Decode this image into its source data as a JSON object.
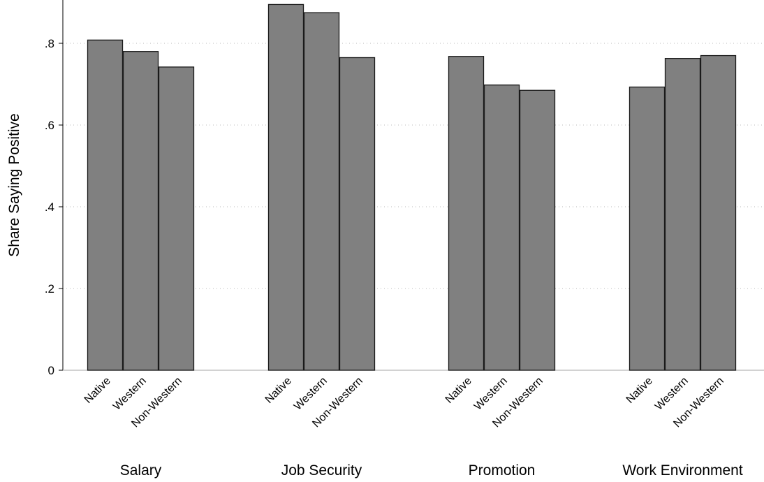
{
  "chart_data": {
    "type": "bar",
    "title": "",
    "xlabel": "",
    "ylabel": "Share Saying Positive",
    "ylim": [
      0,
      0.9
    ],
    "yticks": [
      {
        "value": 0,
        "label": "0"
      },
      {
        "value": 0.2,
        "label": ".2"
      },
      {
        "value": 0.4,
        "label": ".4"
      },
      {
        "value": 0.6,
        "label": ".6"
      },
      {
        "value": 0.8,
        "label": ".8"
      }
    ],
    "grid": "horizontal dotted",
    "legend": "none",
    "groups": [
      "Salary",
      "Job Security",
      "Promotion",
      "Work Environment"
    ],
    "categories": [
      "Native",
      "Western",
      "Non-Western"
    ],
    "values": [
      [
        0.808,
        0.78,
        0.742
      ],
      [
        0.895,
        0.875,
        0.765
      ],
      [
        0.768,
        0.698,
        0.685
      ],
      [
        0.693,
        0.763,
        0.77
      ]
    ],
    "colors": {
      "bar_fill": "#808080",
      "bar_stroke": "#1a1a1a",
      "grid": "#b8b8b8",
      "axis": "#000000"
    }
  }
}
